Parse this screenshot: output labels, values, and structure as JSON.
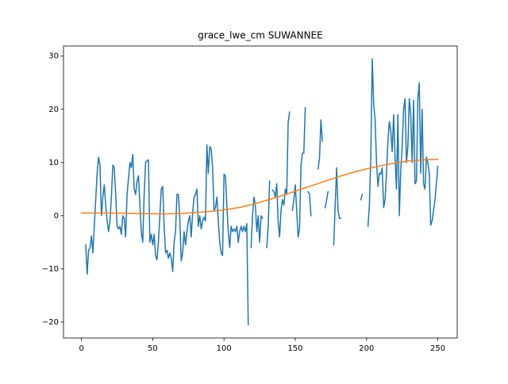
{
  "chart_data": {
    "type": "line",
    "title": "grace_lwe_cm SUWANNEE",
    "xlim": [
      -12.6,
      263.6
    ],
    "ylim": [
      -23,
      31.9
    ],
    "xticks": [
      0,
      50,
      100,
      150,
      200,
      250
    ],
    "yticks": [
      {
        "value": -20,
        "label": "−20"
      },
      {
        "value": -10,
        "label": "−10"
      },
      0,
      10,
      20,
      30
    ],
    "series": [
      {
        "color": "#1f77b4",
        "x": [
          0,
          1,
          2,
          3,
          4,
          5,
          6,
          7,
          8,
          9,
          10,
          11,
          12,
          13,
          14,
          15,
          16,
          17,
          18,
          19,
          20,
          21,
          22,
          23,
          24,
          25,
          26,
          27,
          28,
          29,
          30,
          31,
          32,
          33,
          34,
          35,
          36,
          37,
          38,
          39,
          40,
          41,
          42,
          43,
          44,
          45,
          46,
          47,
          48,
          49,
          50,
          51,
          52,
          53,
          54,
          55,
          56,
          57,
          58,
          59,
          60,
          61,
          62,
          63,
          64,
          65,
          66,
          67,
          68,
          69,
          70,
          71,
          72,
          73,
          74,
          75,
          76,
          77,
          78,
          79,
          80,
          81,
          82,
          83,
          84,
          85,
          86,
          87,
          88,
          89,
          90,
          91,
          92,
          93,
          94,
          95,
          96,
          97,
          98,
          99,
          100,
          101,
          102,
          103,
          104,
          105,
          106,
          107,
          108,
          109,
          110,
          111,
          112,
          113,
          114,
          115,
          116,
          117,
          118,
          119,
          120,
          121,
          122,
          123,
          124,
          125,
          126,
          127,
          128,
          129,
          130,
          131,
          132,
          133,
          134,
          135,
          136,
          137,
          138,
          139,
          140,
          141,
          142,
          143,
          144,
          145,
          146,
          147,
          148,
          149,
          150,
          151,
          152,
          153,
          154,
          155,
          156,
          157,
          158,
          159,
          160,
          161,
          162,
          163,
          164,
          165,
          166,
          167,
          168,
          169,
          170,
          171,
          172,
          173,
          174,
          175,
          176,
          177,
          178,
          179,
          180,
          181,
          182,
          183,
          184,
          185,
          186,
          187,
          188,
          189,
          190,
          191,
          192,
          193,
          194,
          195,
          196,
          197,
          198,
          199,
          200,
          201,
          202,
          203,
          204,
          205,
          206,
          207,
          208,
          209,
          210,
          211,
          212,
          213,
          214,
          215,
          216,
          217,
          218,
          219,
          220,
          221,
          222,
          223,
          224,
          225,
          226,
          227,
          228,
          229,
          230,
          231,
          232,
          233,
          234,
          235,
          236,
          237,
          238,
          239,
          240,
          241,
          242,
          243,
          244,
          245,
          246,
          247,
          248,
          249,
          250,
          251
        ],
        "values": [
          null,
          null,
          null,
          -5.5,
          -11,
          -6.5,
          -6,
          -3.8,
          -7,
          -2,
          3,
          8,
          11,
          9.5,
          0,
          3.5,
          5.8,
          2,
          -1,
          -3,
          -1,
          3.5,
          9.5,
          9,
          4,
          -2,
          -2.5,
          -2,
          -3.5,
          0,
          -0.5,
          -4,
          4,
          7,
          10,
          9,
          11.5,
          5,
          4,
          6.5,
          7.5,
          2,
          -3,
          -5,
          4,
          10,
          10.3,
          10.5,
          -5,
          -3.5,
          -5.5,
          -3.5,
          -7.5,
          -8.3,
          -5,
          0,
          5,
          5.5,
          -2,
          -7,
          -6.5,
          -8,
          -7,
          -8,
          -10.5,
          -5,
          -3,
          4,
          4,
          -0.5,
          -8.5,
          -7,
          -3,
          -5.5,
          -3,
          -1,
          0,
          -4,
          0.5,
          3.5,
          4,
          5,
          -2,
          0,
          -2.5,
          -1,
          -0.3,
          -1,
          13.3,
          8,
          13,
          12.5,
          9,
          1,
          1.5,
          3.5,
          -1,
          -5,
          -7,
          -7.5,
          7.8,
          7.5,
          2,
          -3,
          -6,
          -2,
          -3,
          -2.5,
          -3,
          -2,
          -5,
          -3,
          -2,
          -3,
          -2,
          -3,
          -1.5,
          -20.5,
          null,
          -6,
          0,
          3.5,
          2,
          -3,
          0,
          -5,
          0,
          -0.5,
          null,
          null,
          -6,
          -2,
          6.5,
          null,
          4.8,
          4.5,
          3.5,
          6,
          -1,
          -4,
          1,
          3,
          2,
          5,
          4,
          17.5,
          19.5,
          null,
          1,
          3,
          5.8,
          1,
          -4,
          -2.5,
          9.5,
          11.7,
          11.8,
          20.3,
          null,
          4.5,
          4,
          0,
          null,
          null,
          null,
          null,
          8.8,
          10.8,
          18,
          14,
          null,
          1.5,
          3,
          4.5,
          null,
          null,
          null,
          -5.5,
          2,
          9,
          1,
          -0.5,
          -0.5,
          null,
          null,
          null,
          null,
          null,
          null,
          null,
          null,
          null,
          null,
          null,
          null,
          null,
          3,
          4,
          null,
          null,
          null,
          -2,
          2,
          11,
          29.5,
          21,
          18,
          10,
          5.5,
          8,
          7.8,
          9,
          1.5,
          3,
          8,
          14,
          17.7,
          16,
          12,
          19,
          11,
          5,
          19,
          0,
          8.5,
          13,
          20,
          22,
          10,
          13,
          22,
          19,
          10,
          21.7,
          6,
          6.5,
          22,
          25,
          8,
          20,
          6,
          5,
          11,
          10,
          8,
          -1.8,
          -1,
          1,
          3,
          6,
          9.3,
          null
        ]
      },
      {
        "color": "#ff7f0e",
        "x": [
          0,
          10,
          20,
          30,
          40,
          50,
          60,
          70,
          80,
          90,
          100,
          110,
          120,
          130,
          140,
          150,
          160,
          170,
          180,
          190,
          200,
          210,
          220,
          230,
          240,
          250
        ],
        "values": [
          0.5,
          0.5,
          0.5,
          0.45,
          0.4,
          0.35,
          0.35,
          0.4,
          0.6,
          0.8,
          1.1,
          1.5,
          2.1,
          2.9,
          3.7,
          4.6,
          5.5,
          6.4,
          7.3,
          8.1,
          8.8,
          9.4,
          9.9,
          10.3,
          10.5,
          10.6
        ]
      }
    ]
  }
}
